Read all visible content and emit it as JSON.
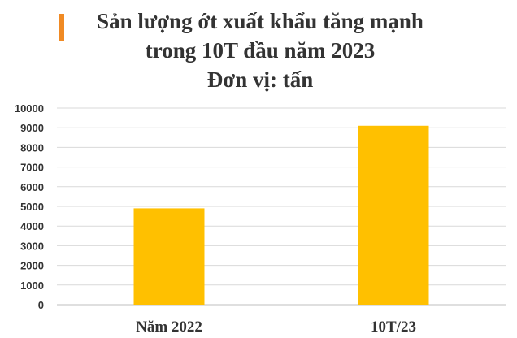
{
  "chart_data": {
    "type": "bar",
    "title_lines": [
      "Sản lượng ớt xuất khẩu tăng mạnh",
      "trong 10T đầu năm 2023",
      "Đơn vị: tấn"
    ],
    "categories": [
      "Năm 2022",
      "10T/23"
    ],
    "values": [
      4900,
      9100
    ],
    "ylim": [
      0,
      10000
    ],
    "yticks": [
      0,
      1000,
      2000,
      3000,
      4000,
      5000,
      6000,
      7000,
      8000,
      9000,
      10000
    ],
    "grid": true,
    "legend": "none",
    "bar_color": "#ffc000",
    "accent_color": "#f08a24"
  }
}
